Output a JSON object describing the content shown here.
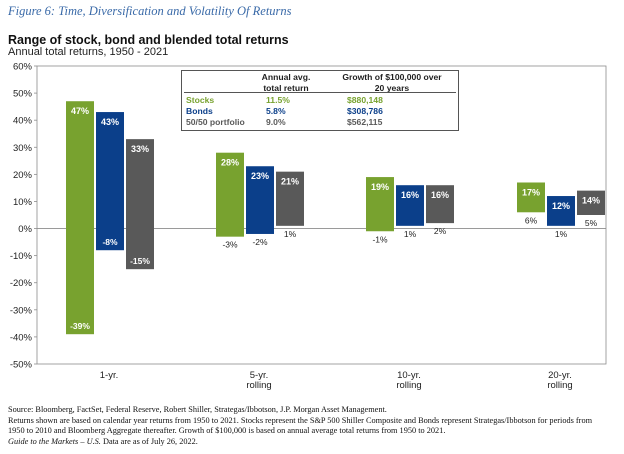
{
  "figure_title": "Figure 6: Time, Diversification and Volatility Of Returns",
  "chart_data": {
    "type": "bar",
    "title": "Range of stock, bond and blended total returns",
    "subtitle": "Annual total returns, 1950 - 2021",
    "categories": [
      [
        "1-yr."
      ],
      [
        "5-yr.",
        "rolling"
      ],
      [
        "10-yr.",
        "rolling"
      ],
      [
        "20-yr.",
        "rolling"
      ]
    ],
    "series": [
      {
        "name": "Stocks",
        "color": "#78a22f",
        "max": [
          47,
          28,
          19,
          17
        ],
        "min": [
          -39,
          -3,
          -1,
          6
        ],
        "max_labels": [
          "47%",
          "28%",
          "19%",
          "17%"
        ],
        "min_labels": [
          "-39%",
          "-3%",
          "-1%",
          "6%"
        ]
      },
      {
        "name": "Bonds",
        "color": "#0b3f8a",
        "max": [
          43,
          23,
          16,
          12
        ],
        "min": [
          -8,
          -2,
          1,
          1
        ],
        "max_labels": [
          "43%",
          "23%",
          "16%",
          "12%"
        ],
        "min_labels": [
          "-8%",
          "-2%",
          "1%",
          "1%"
        ]
      },
      {
        "name": "50/50 portfolio",
        "color": "#595959",
        "max": [
          33,
          21,
          16,
          14
        ],
        "min": [
          -15,
          1,
          2,
          5
        ],
        "max_labels": [
          "33%",
          "21%",
          "16%",
          "14%"
        ],
        "min_labels": [
          "-15%",
          "1%",
          "2%",
          "5%"
        ]
      }
    ],
    "ylim": [
      -50,
      60
    ],
    "yticks": [
      -50,
      -40,
      -30,
      -20,
      -10,
      0,
      10,
      20,
      30,
      40,
      50,
      60
    ],
    "ytick_labels": [
      "-50%",
      "-40%",
      "-30%",
      "-20%",
      "-10%",
      "0%",
      "10%",
      "20%",
      "30%",
      "40%",
      "50%",
      "60%"
    ],
    "grid": false
  },
  "table": {
    "headers": [
      [
        "Annual avg.",
        "total return"
      ],
      [
        "Growth of $100,000 over",
        "20 years"
      ]
    ],
    "rows": [
      {
        "label": "Stocks",
        "return": "11.5%",
        "growth": "$880,148",
        "color": "#78a22f"
      },
      {
        "label": "Bonds",
        "return": "5.8%",
        "growth": "$308,786",
        "color": "#0b3f8a"
      },
      {
        "label": "50/50 portfolio",
        "return": "9.0%",
        "growth": "$562,115",
        "color": "#595959"
      }
    ]
  },
  "footer": {
    "source": "Source: Bloomberg, FactSet, Federal Reserve, Robert Shiller, Strategas/Ibbotson, J.P. Morgan Asset Management.",
    "notes1": "Returns shown are based on calendar year returns from 1950 to 2021. Stocks represent the S&P 500 Shiller Composite and Bonds represent Strategas/Ibbotson for periods from",
    "notes2": "1950 to 2010 and Bloomberg Aggregate thereafter. Growth of $100,000 is based on annual average total returns from 1950 to 2021.",
    "guide_title": "Guide to the Markets – U.S.",
    "guide_rest": " Data are as of July 26, 2022."
  }
}
